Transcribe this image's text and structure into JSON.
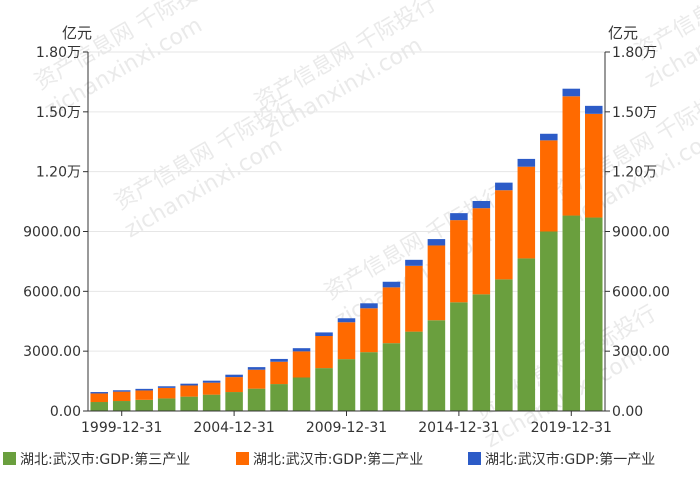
{
  "watermark": {
    "line1": "资产信息网 千际投行",
    "line2": "zichanxinxi.com"
  },
  "chart_data": {
    "type": "bar",
    "stacked": true,
    "units": {
      "left": "亿元",
      "right": "亿元"
    },
    "categories": [
      "1998-12-31",
      "1999-12-31",
      "2000-12-31",
      "2001-12-31",
      "2002-12-31",
      "2003-12-31",
      "2004-12-31",
      "2005-12-31",
      "2006-12-31",
      "2007-12-31",
      "2008-12-31",
      "2009-12-31",
      "2010-12-31",
      "2011-12-31",
      "2012-12-31",
      "2013-12-31",
      "2014-12-31",
      "2015-12-31",
      "2016-12-31",
      "2017-12-31",
      "2018-12-31",
      "2019-12-31",
      "2020-12-31"
    ],
    "x_tick_labels": [
      "1999-12-31",
      "2004-12-31",
      "2009-12-31",
      "2014-12-31",
      "2019-12-31"
    ],
    "x_tick_categories": [
      "1999-12-31",
      "2004-12-31",
      "2009-12-31",
      "2014-12-31",
      "2019-12-31"
    ],
    "ylim": [
      0,
      18000
    ],
    "y_ticks": [
      0,
      3000,
      6000,
      9000,
      12000,
      15000,
      18000
    ],
    "y_tick_labels": [
      "0.00",
      "3000.00",
      "6000.00",
      "9000.00",
      "1.20万",
      "1.50万",
      "1.80万"
    ],
    "legend_position": "bottom",
    "series": [
      {
        "name": "湖北:武汉市:GDP:第三产业",
        "color": "#6a9f3e",
        "values": [
          450,
          500,
          560,
          630,
          720,
          820,
          950,
          1120,
          1350,
          1680,
          2150,
          2600,
          2950,
          3400,
          3980,
          4550,
          5450,
          5850,
          6600,
          7650,
          9000,
          9800,
          9700
        ]
      },
      {
        "name": "湖北:武汉市:GDP:第二产业",
        "color": "#ff6a00",
        "values": [
          430,
          470,
          470,
          530,
          560,
          600,
          750,
          950,
          1120,
          1310,
          1610,
          1850,
          2200,
          2800,
          3300,
          3750,
          4120,
          4320,
          4470,
          4600,
          4570,
          5980,
          5200
        ]
      },
      {
        "name": "湖北:武汉市:GDP:第一产业",
        "color": "#2c5bc7",
        "values": [
          70,
          70,
          80,
          80,
          90,
          100,
          120,
          130,
          140,
          160,
          180,
          200,
          250,
          280,
          300,
          320,
          350,
          360,
          380,
          390,
          330,
          380,
          400
        ]
      }
    ]
  }
}
